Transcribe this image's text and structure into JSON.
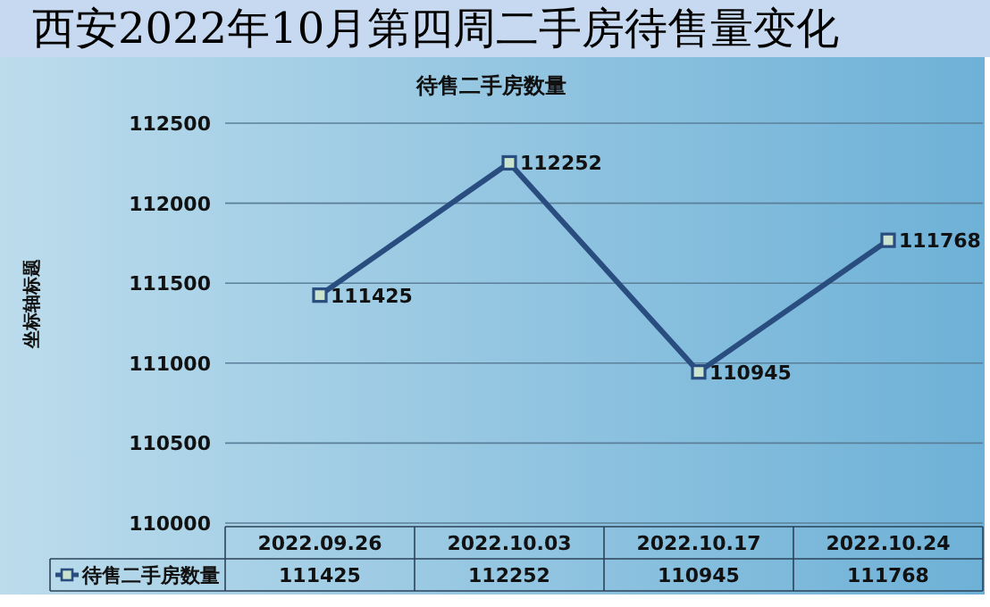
{
  "chart_data": {
    "type": "line",
    "title": "西安2022年10月第四周二手房待售量变化",
    "subtitle": "待售二手房数量",
    "ylabel": "坐标轴标题",
    "categories": [
      "2022.09.26",
      "2022.10.03",
      "2022.10.17",
      "2022.10.24"
    ],
    "series": [
      {
        "name": "待售二手房数量",
        "color": "#2a4d80",
        "values": [
          111425,
          112252,
          110945,
          111768
        ]
      }
    ],
    "annotations": [
      {
        "text": "111425",
        "x": "2022.09.26",
        "y": 111425
      },
      {
        "text": "112252",
        "x": "2022.10.03",
        "y": 112252
      },
      {
        "text": "110945",
        "x": "2022.10.17",
        "y": 110945
      },
      {
        "text": "111768",
        "x": "2022.10.24",
        "y": 111768
      }
    ],
    "ylim": [
      110000,
      112500
    ],
    "yticks": [
      110000,
      110500,
      111000,
      111500,
      112000,
      112500
    ],
    "grid": "y",
    "marker": "square",
    "line_style": "solid",
    "data_labels": true,
    "legend": "bottom"
  }
}
